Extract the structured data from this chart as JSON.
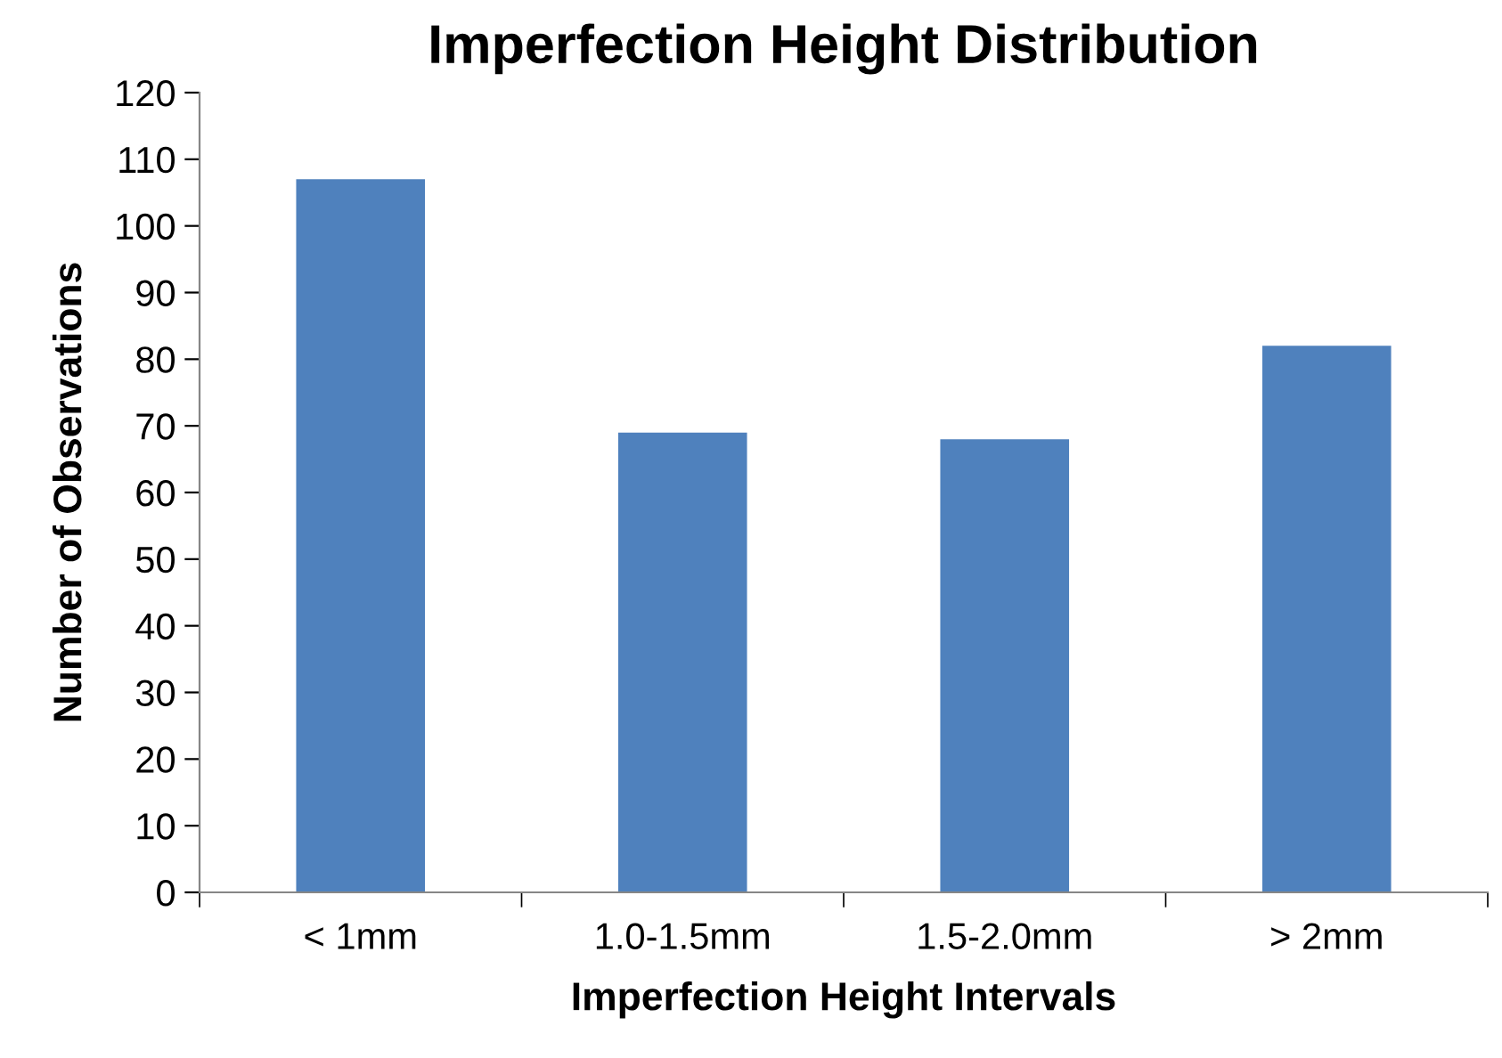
{
  "chart_data": {
    "type": "bar",
    "title": "Imperfection Height Distribution",
    "xlabel": "Imperfection Height Intervals",
    "ylabel": "Number of Observations",
    "categories": [
      "< 1mm",
      "1.0-1.5mm",
      "1.5-2.0mm",
      "> 2mm"
    ],
    "values": [
      107,
      69,
      68,
      82
    ],
    "color": "#4f81bd",
    "ylim": [
      0,
      120
    ],
    "yticks": [
      0,
      10,
      20,
      30,
      40,
      50,
      60,
      70,
      80,
      90,
      100,
      110,
      120
    ],
    "grid": false,
    "legend": false
  }
}
